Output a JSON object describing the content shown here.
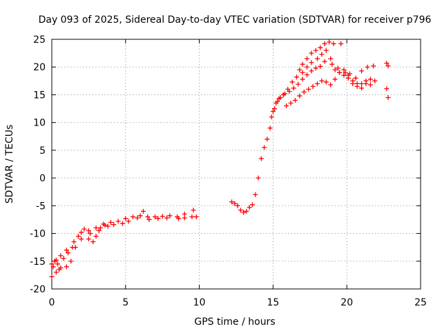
{
  "chart_data": {
    "type": "scatter",
    "title": "Day 093 of 2025, Sidereal Day-to-day VTEC variation (SDTVAR) for receiver p796",
    "xlabel": "GPS time / hours",
    "ylabel": "SDTVAR / TECUs",
    "xlim": [
      0,
      25
    ],
    "ylim": [
      -20,
      25
    ],
    "xticks": [
      0,
      5,
      10,
      15,
      20,
      25
    ],
    "yticks": [
      -20,
      -15,
      -10,
      -5,
      0,
      5,
      10,
      15,
      20,
      25
    ],
    "grid": true,
    "marker": "+",
    "color": "#ff0000",
    "series": [
      {
        "name": "trace-main",
        "x": [
          0.0,
          0.3,
          0.6,
          1.0,
          1.5,
          2.0,
          2.5,
          3.0,
          3.5,
          4.0,
          4.5,
          5.0,
          5.5,
          6.0,
          6.5,
          7.0,
          7.5,
          8.0,
          8.5,
          9.0,
          9.5,
          9.8
        ],
        "y": [
          -15.5,
          -14.8,
          -14.0,
          -13.0,
          -11.5,
          -9.8,
          -9.5,
          -9.0,
          -8.3,
          -8.0,
          -7.8,
          -7.3,
          -7.0,
          -6.8,
          -7.0,
          -7.0,
          -6.9,
          -6.8,
          -7.0,
          -7.2,
          -7.0,
          -7.0
        ]
      },
      {
        "name": "trace-lower",
        "x": [
          0.0,
          0.3,
          0.6,
          1.0,
          1.3,
          1.6,
          2.0,
          2.5,
          3.0,
          3.3,
          3.6
        ],
        "y": [
          -17.8,
          -17.0,
          -16.2,
          -16.0,
          -15.0,
          -12.5,
          -11.0,
          -11.0,
          -10.5,
          -9.0,
          -8.5
        ]
      },
      {
        "name": "trace-scatter-early",
        "x": [
          0.1,
          0.2,
          0.4,
          0.5,
          0.8,
          1.1,
          1.4,
          1.8,
          2.2,
          2.6,
          2.8,
          3.2,
          3.8,
          4.2,
          4.8,
          5.2,
          5.8,
          6.2,
          6.6,
          7.2,
          7.8,
          8.6,
          9.0,
          9.6
        ],
        "y": [
          -16.0,
          -15.0,
          -15.5,
          -16.5,
          -14.5,
          -13.5,
          -12.5,
          -10.5,
          -9.2,
          -10.0,
          -11.5,
          -9.5,
          -8.7,
          -8.4,
          -8.2,
          -7.8,
          -7.2,
          -6.0,
          -7.5,
          -7.3,
          -7.2,
          -7.3,
          -6.5,
          -5.8
        ]
      },
      {
        "name": "trace-evening",
        "x": [
          12.2,
          12.4,
          12.6,
          12.8,
          13.0,
          13.2,
          13.4,
          13.6,
          13.8,
          14.0,
          14.2,
          14.4,
          14.6,
          14.8,
          15.0,
          15.2,
          15.4,
          15.7,
          16.0,
          16.3,
          16.6,
          17.0,
          17.3,
          17.6,
          18.0,
          18.3,
          18.6,
          18.9,
          19.2,
          19.5,
          19.8,
          20.1,
          20.4,
          20.7,
          21.0,
          21.3,
          21.6,
          21.9
        ],
        "y": [
          -4.3,
          -4.6,
          -5.0,
          -5.8,
          -6.2,
          -6.0,
          -5.3,
          -4.8,
          -3.0,
          0.0,
          3.5,
          5.5,
          7.0,
          9.0,
          12.0,
          13.5,
          14.3,
          15.0,
          16.0,
          17.3,
          18.2,
          19.0,
          20.0,
          20.8,
          21.5,
          22.3,
          23.0,
          21.5,
          19.5,
          19.0,
          18.5,
          18.0,
          17.5,
          17.0,
          17.0,
          17.5,
          17.8,
          17.5
        ]
      },
      {
        "name": "trace-evening-upper",
        "x": [
          16.8,
          17.0,
          17.3,
          17.6,
          17.9,
          18.2,
          18.5,
          18.8,
          19.1
        ],
        "y": [
          19.5,
          20.5,
          21.5,
          22.5,
          23.0,
          23.5,
          24.2,
          24.5,
          24.2
        ]
      },
      {
        "name": "trace-evening-lower",
        "x": [
          15.9,
          16.2,
          16.5,
          16.8,
          17.1,
          17.4,
          17.7,
          18.0,
          18.3,
          18.6,
          18.9,
          19.2,
          19.5,
          19.8,
          20.1,
          20.4,
          20.7,
          21.0,
          21.3,
          21.6
        ],
        "y": [
          13.0,
          13.5,
          14.0,
          14.8,
          15.5,
          16.0,
          16.5,
          17.0,
          17.5,
          17.3,
          16.8,
          17.8,
          19.0,
          19.5,
          18.5,
          17.0,
          16.5,
          16.2,
          17.0,
          16.8
        ]
      },
      {
        "name": "trace-evening-mid",
        "x": [
          14.9,
          15.1,
          15.3,
          15.5,
          15.8,
          16.1,
          16.4,
          16.7,
          17.0,
          17.3,
          17.6,
          17.9,
          18.2,
          18.5,
          19.0,
          19.4,
          19.9,
          20.2,
          20.6,
          21.0,
          21.4,
          21.8
        ],
        "y": [
          11.0,
          12.5,
          13.8,
          14.5,
          15.2,
          15.6,
          16.2,
          16.9,
          17.8,
          18.6,
          19.3,
          19.8,
          20.1,
          21.0,
          20.5,
          19.8,
          19.0,
          18.8,
          18.0,
          19.3,
          20.0,
          20.2
        ]
      },
      {
        "name": "trace-isolated",
        "x": [
          19.6,
          22.7,
          22.8,
          22.7,
          22.8
        ],
        "y": [
          24.2,
          20.7,
          20.2,
          16.1,
          14.5
        ]
      }
    ]
  }
}
